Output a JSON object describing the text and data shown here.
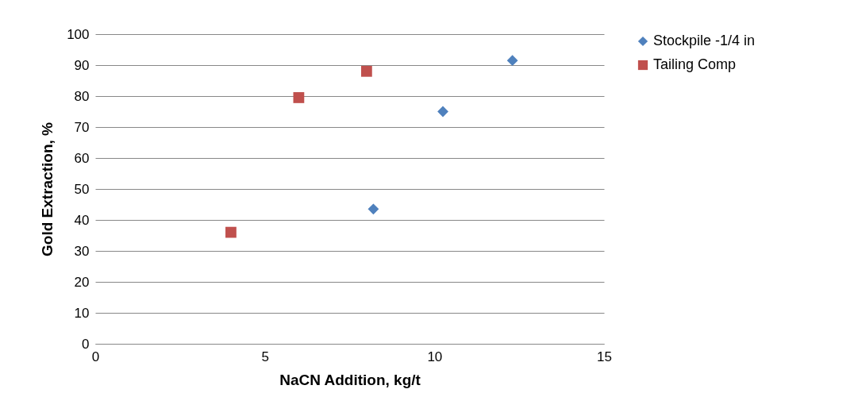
{
  "chart_data": {
    "type": "scatter",
    "xlabel": "NaCN Addition, kg/t",
    "ylabel": "Gold Extraction, %",
    "xlim": [
      0,
      15
    ],
    "xticks": [
      0,
      5,
      10,
      15
    ],
    "ylim": [
      0,
      100
    ],
    "yticks": [
      0,
      10,
      20,
      30,
      40,
      50,
      60,
      70,
      80,
      90,
      100
    ],
    "grid": "y",
    "legend": "right",
    "series": [
      {
        "name": "Stockpile -1/4 in",
        "color": "#4f81bd",
        "marker": "diamond",
        "x": [
          8.2,
          10.25,
          12.3
        ],
        "values": [
          43.5,
          75,
          91.5
        ]
      },
      {
        "name": "Tailing Comp",
        "color": "#c0504d",
        "marker": "square",
        "x": [
          4,
          6,
          8
        ],
        "values": [
          36,
          79.5,
          88
        ]
      }
    ]
  }
}
